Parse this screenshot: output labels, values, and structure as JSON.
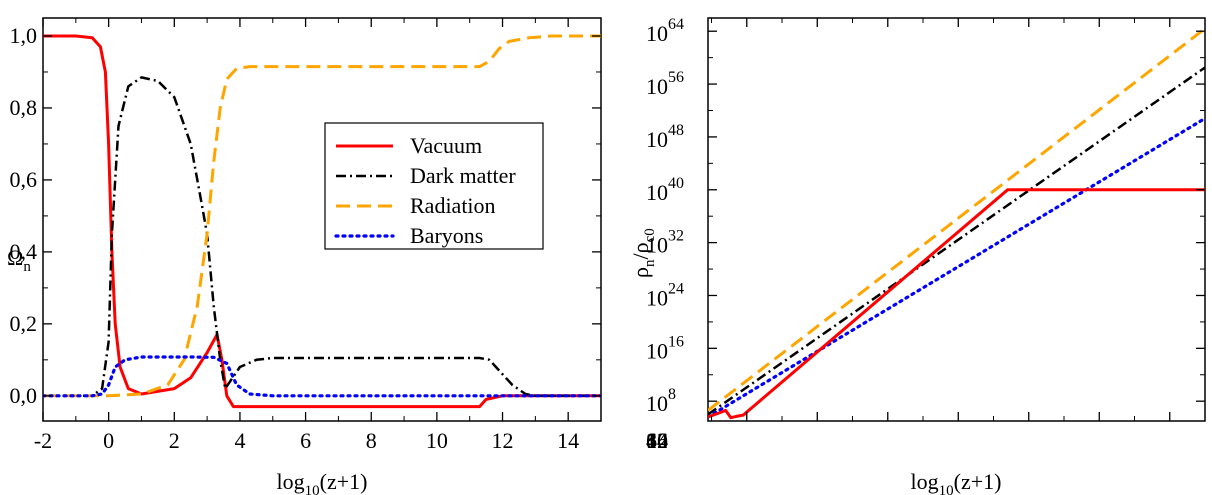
{
  "chart_data": [
    {
      "type": "line",
      "xlabel": {
        "base": "log",
        "sub": "10",
        "rest": "(z+1)"
      },
      "ylabel": {
        "base": "Ω",
        "sub": "n"
      },
      "xlim": [
        -2,
        15
      ],
      "ylim": [
        -0.07,
        1.05
      ],
      "x_ticks": [
        "-2",
        "0",
        "2",
        "4",
        "6",
        "8",
        "10",
        "12",
        "14"
      ],
      "y_ticks": [
        "0,0",
        "0,2",
        "0,4",
        "0,6",
        "0,8",
        "1,0"
      ],
      "grid": false,
      "legend_position": "center-right",
      "series": [
        {
          "name": "Vacuum",
          "color": "#ff0000",
          "dash": "solid",
          "points": [
            [
              -2,
              1.0
            ],
            [
              -1,
              1.0
            ],
            [
              -0.5,
              0.995
            ],
            [
              -0.25,
              0.97
            ],
            [
              -0.1,
              0.9
            ],
            [
              0,
              0.7
            ],
            [
              0.1,
              0.4
            ],
            [
              0.2,
              0.2
            ],
            [
              0.35,
              0.08
            ],
            [
              0.6,
              0.02
            ],
            [
              1.0,
              0.005
            ],
            [
              2.0,
              0.02
            ],
            [
              2.5,
              0.05
            ],
            [
              3.0,
              0.12
            ],
            [
              3.3,
              0.17
            ],
            [
              3.45,
              0.1
            ],
            [
              3.6,
              0.0
            ],
            [
              3.8,
              -0.03
            ],
            [
              6,
              -0.03
            ],
            [
              11.3,
              -0.03
            ],
            [
              11.5,
              -0.01
            ],
            [
              12,
              0.0
            ],
            [
              13,
              0.0
            ],
            [
              15,
              0.0
            ]
          ]
        },
        {
          "name": "Dark matter",
          "color": "#000000",
          "dash": "dashdot",
          "points": [
            [
              -2,
              0.0
            ],
            [
              -0.5,
              0.0
            ],
            [
              -0.2,
              0.02
            ],
            [
              0,
              0.15
            ],
            [
              0.1,
              0.45
            ],
            [
              0.3,
              0.75
            ],
            [
              0.6,
              0.86
            ],
            [
              1.0,
              0.885
            ],
            [
              1.5,
              0.875
            ],
            [
              2.0,
              0.83
            ],
            [
              2.5,
              0.7
            ],
            [
              2.8,
              0.55
            ],
            [
              3.0,
              0.45
            ],
            [
              3.2,
              0.25
            ],
            [
              3.4,
              0.1
            ],
            [
              3.55,
              0.02
            ],
            [
              3.7,
              0.04
            ],
            [
              4.0,
              0.08
            ],
            [
              4.5,
              0.1
            ],
            [
              5,
              0.105
            ],
            [
              11.3,
              0.105
            ],
            [
              11.6,
              0.1
            ],
            [
              12,
              0.06
            ],
            [
              12.3,
              0.03
            ],
            [
              12.7,
              0.005
            ],
            [
              13,
              0.0
            ],
            [
              15,
              0.0
            ]
          ]
        },
        {
          "name": "Radiation",
          "color": "#ffa500",
          "dash": "dashed",
          "points": [
            [
              -2,
              0.0
            ],
            [
              0,
              0.0
            ],
            [
              1.0,
              0.005
            ],
            [
              1.8,
              0.03
            ],
            [
              2.3,
              0.1
            ],
            [
              2.7,
              0.25
            ],
            [
              3.0,
              0.45
            ],
            [
              3.2,
              0.65
            ],
            [
              3.4,
              0.8
            ],
            [
              3.6,
              0.88
            ],
            [
              3.9,
              0.91
            ],
            [
              4.3,
              0.915
            ],
            [
              11.3,
              0.915
            ],
            [
              11.6,
              0.93
            ],
            [
              11.9,
              0.965
            ],
            [
              12.2,
              0.985
            ],
            [
              12.8,
              0.995
            ],
            [
              13.5,
              1.0
            ],
            [
              15,
              1.0
            ]
          ]
        },
        {
          "name": "Baryons",
          "color": "#0000ff",
          "dash": "dotted",
          "points": [
            [
              -2,
              0.0
            ],
            [
              -0.5,
              0.0
            ],
            [
              -0.2,
              0.005
            ],
            [
              0,
              0.03
            ],
            [
              0.2,
              0.08
            ],
            [
              0.5,
              0.1
            ],
            [
              1.0,
              0.108
            ],
            [
              2.5,
              0.108
            ],
            [
              3.2,
              0.107
            ],
            [
              3.6,
              0.09
            ],
            [
              3.9,
              0.03
            ],
            [
              4.3,
              0.005
            ],
            [
              5,
              0.0
            ],
            [
              15,
              0.0
            ]
          ]
        }
      ],
      "legend": [
        "Vacuum",
        "Dark matter",
        "Radiation",
        "Baryons"
      ]
    },
    {
      "type": "line",
      "xlabel": {
        "base": "log",
        "sub": "10",
        "rest": "(z+1)"
      },
      "ylabel": {
        "rho1": "ρ",
        "sub1": "n",
        "slash": "/",
        "rho2": "ρ",
        "sub2": "c0"
      },
      "xlim": [
        2.9,
        17
      ],
      "y_log_exponent_range": [
        5,
        66
      ],
      "y_scale": "log",
      "x_ticks": [
        "4",
        "6",
        "8",
        "10",
        "12",
        "14",
        "16"
      ],
      "y_ticks": [
        {
          "base": "10",
          "exp": "8"
        },
        {
          "base": "10",
          "exp": "16"
        },
        {
          "base": "10",
          "exp": "24"
        },
        {
          "base": "10",
          "exp": "32"
        },
        {
          "base": "10",
          "exp": "40"
        },
        {
          "base": "10",
          "exp": "48"
        },
        {
          "base": "10",
          "exp": "56"
        },
        {
          "base": "10",
          "exp": "64"
        }
      ],
      "grid": false,
      "series": [
        {
          "color": "#ffa500",
          "dash": "dashed",
          "log10_points": [
            [
              2.9,
              6.6
            ],
            [
              17,
              64.4
            ]
          ]
        },
        {
          "color": "#000000",
          "dash": "dashdot",
          "log10_points": [
            [
              2.9,
              6.0
            ],
            [
              17,
              58.5
            ]
          ]
        },
        {
          "color": "#0000ff",
          "dash": "dotted",
          "log10_points": [
            [
              2.9,
              5.6
            ],
            [
              17,
              50.8
            ]
          ]
        },
        {
          "color": "#ff0000",
          "dash": "solid",
          "log10_points": [
            [
              2.9,
              5.6
            ],
            [
              3.2,
              6.2
            ],
            [
              3.4,
              6.6
            ],
            [
              3.55,
              5.5
            ],
            [
              3.7,
              5.7
            ],
            [
              3.9,
              5.9
            ],
            [
              11.4,
              40
            ],
            [
              17,
              40
            ]
          ]
        }
      ]
    }
  ]
}
